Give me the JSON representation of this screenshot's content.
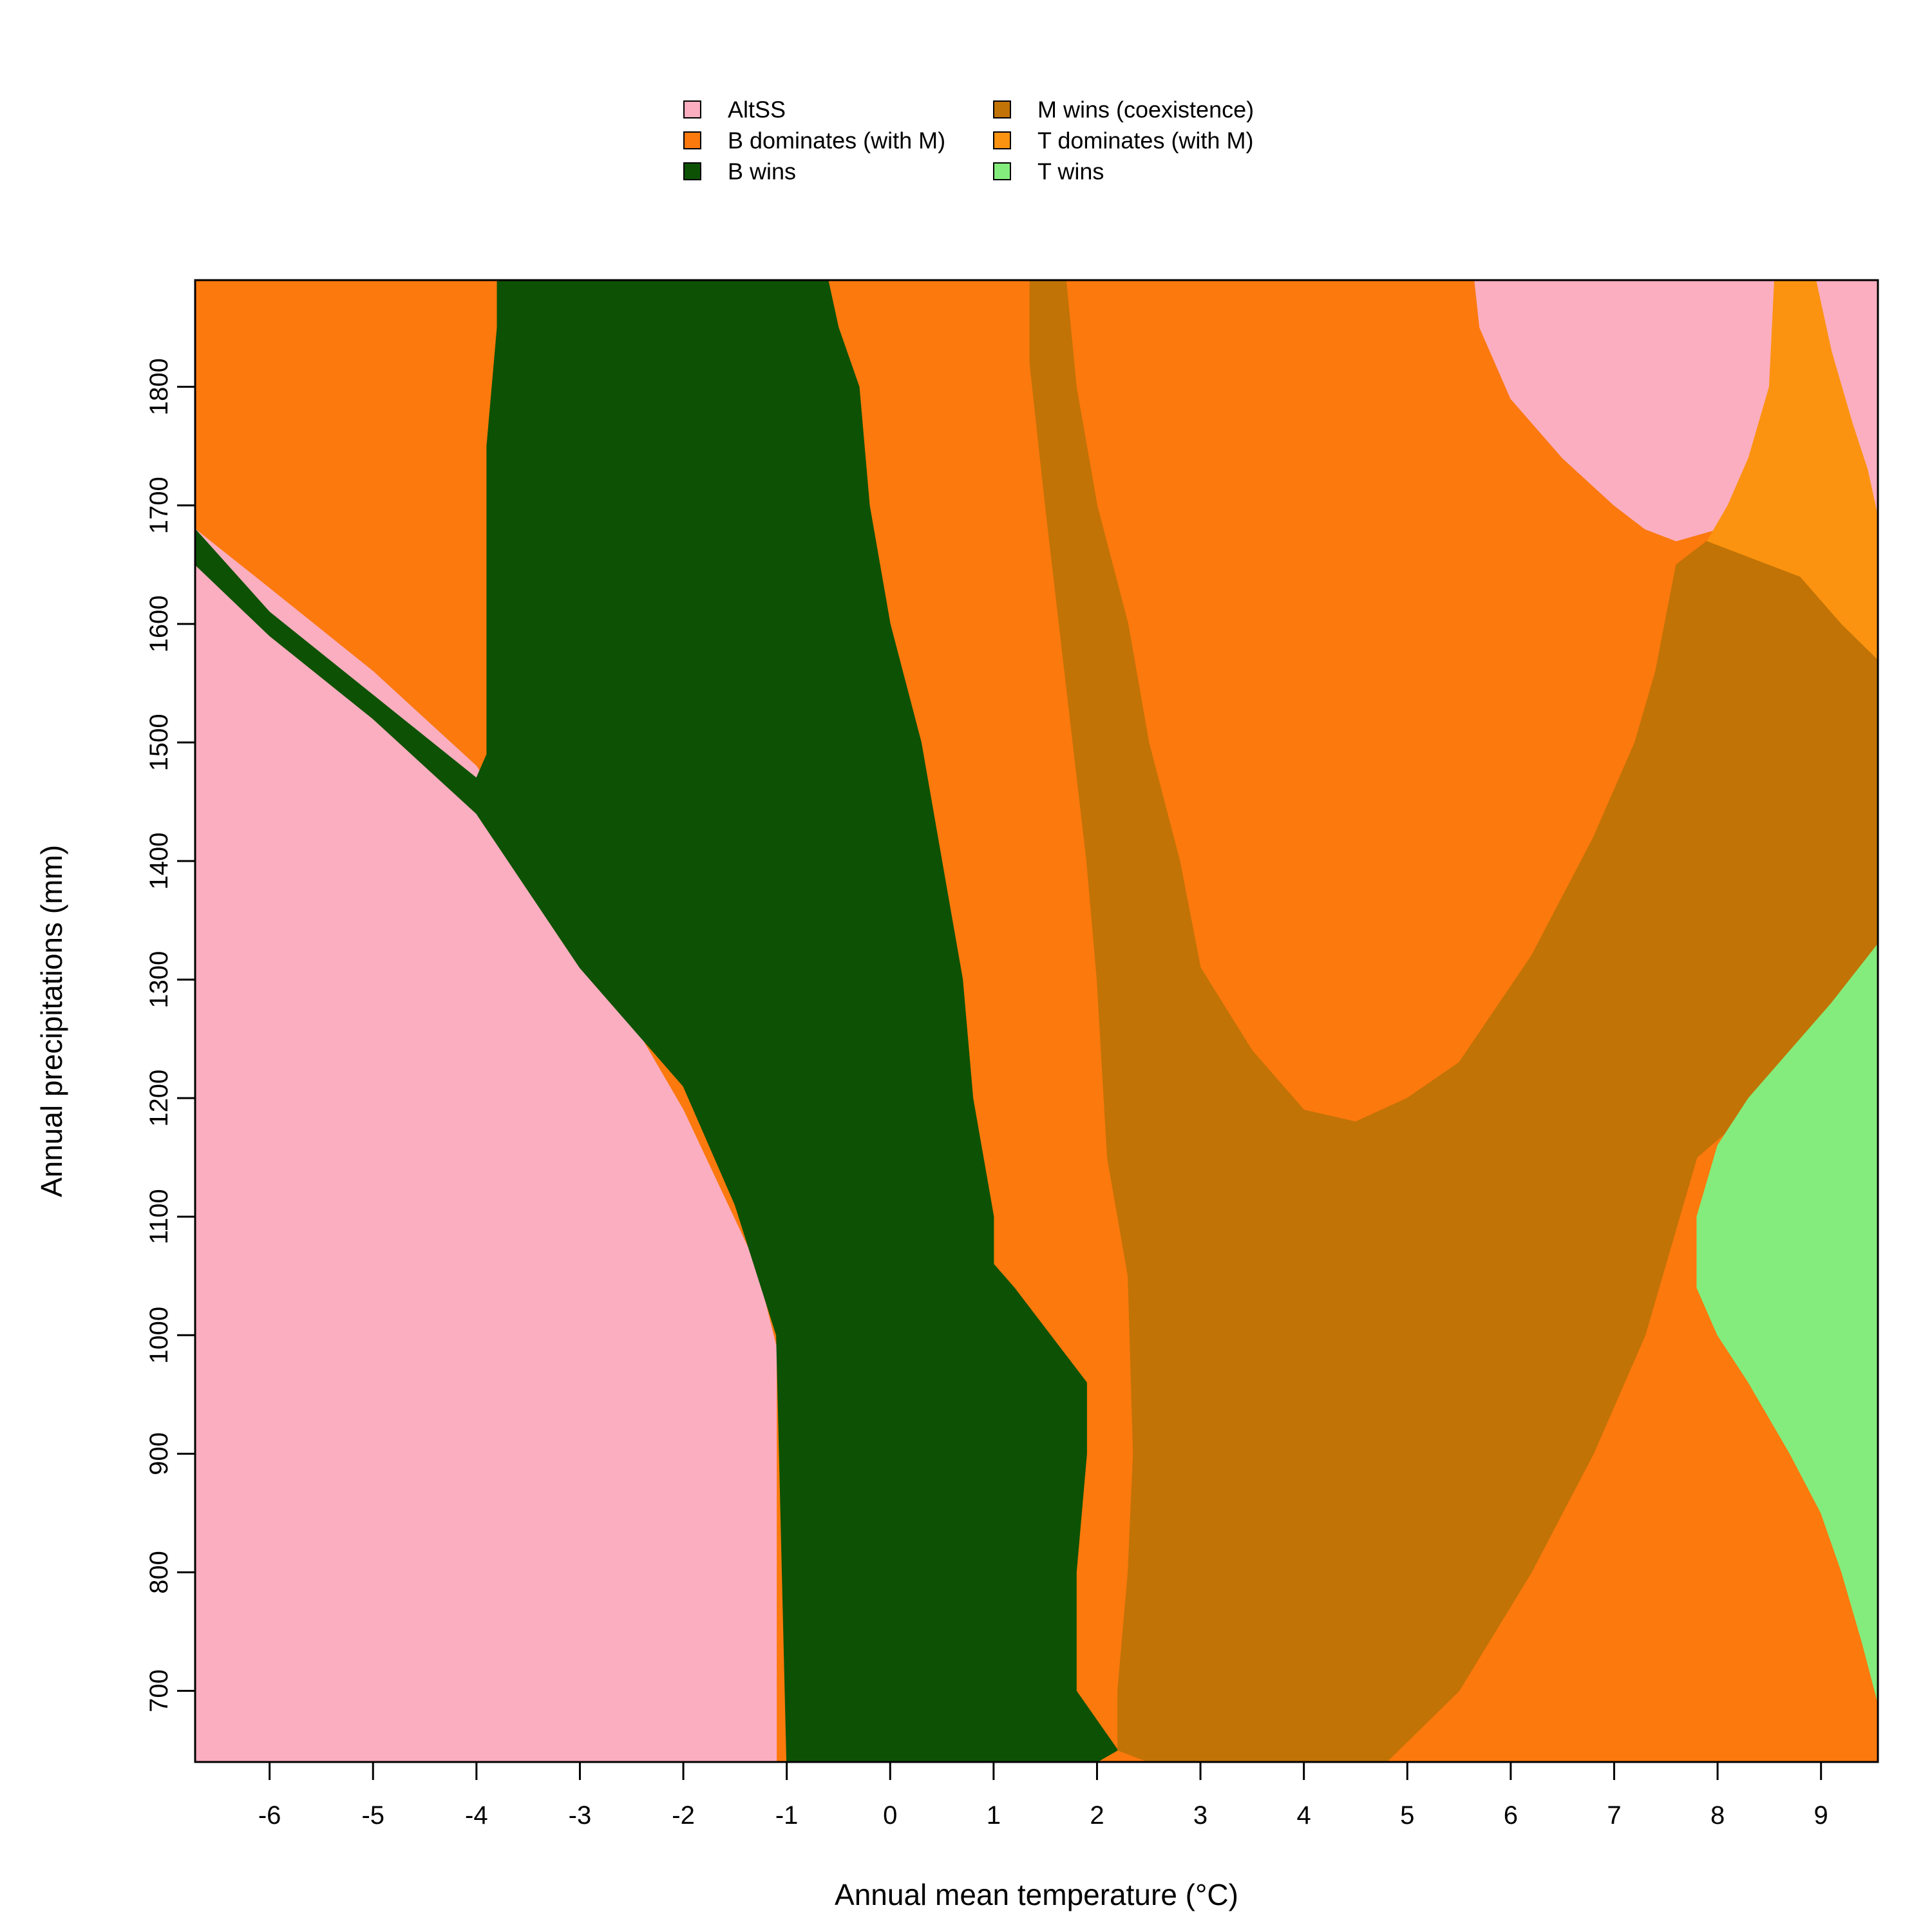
{
  "chart_data": {
    "type": "heatmap",
    "title": "",
    "xlabel": "Annual mean temperature (°C)",
    "ylabel": "Annual precipitations (mm)",
    "xlim": [
      -6.72,
      9.55
    ],
    "ylim": [
      640,
      1890
    ],
    "x_ticks": [
      -6,
      -5,
      -4,
      -3,
      -2,
      -1,
      0,
      1,
      2,
      3,
      4,
      5,
      6,
      7,
      8,
      9
    ],
    "y_ticks": [
      700,
      800,
      900,
      1000,
      1100,
      1200,
      1300,
      1400,
      1500,
      1600,
      1700,
      1800
    ],
    "legend": {
      "placement": "top-center",
      "entries": [
        {
          "key": "altss",
          "label": "AltSS",
          "color": "#FBAEC0"
        },
        {
          "key": "b_dom",
          "label": "B dominates (with M)",
          "color": "#FB790D"
        },
        {
          "key": "b_wins",
          "label": "B wins",
          "color": "#0D5204"
        },
        {
          "key": "m_wins",
          "label": "M wins (coexistence)",
          "color": "#C17306"
        },
        {
          "key": "t_dom",
          "label": "T dominates (with M)",
          "color": "#FB9310"
        },
        {
          "key": "t_wins",
          "label": "T wins",
          "color": "#84EC7C"
        }
      ]
    },
    "regions": [
      {
        "state": "b_dom",
        "points": [
          [
            -6.72,
            1890
          ],
          [
            -6.72,
            640
          ],
          [
            9.55,
            640
          ],
          [
            9.55,
            1890
          ]
        ]
      },
      {
        "state": "altss",
        "points": [
          [
            -6.72,
            640
          ],
          [
            -6.72,
            1680
          ],
          [
            -6.0,
            1630
          ],
          [
            -5.0,
            1560
          ],
          [
            -4.0,
            1480
          ],
          [
            -3.0,
            1340
          ],
          [
            -2.0,
            1190
          ],
          [
            -1.3,
            1060
          ],
          [
            -1.1,
            990
          ],
          [
            -1.1,
            640
          ]
        ]
      },
      {
        "state": "b_wins",
        "points": [
          [
            -6.72,
            1680
          ],
          [
            -6.72,
            1650
          ],
          [
            -6.0,
            1590
          ],
          [
            -5.0,
            1520
          ],
          [
            -4.0,
            1440
          ],
          [
            -3.0,
            1310
          ],
          [
            -2.0,
            1210
          ],
          [
            -1.5,
            1110
          ],
          [
            -1.1,
            1000
          ],
          [
            -1.0,
            640
          ],
          [
            2.0,
            640
          ],
          [
            2.2,
            650
          ],
          [
            1.8,
            700
          ],
          [
            1.8,
            800
          ],
          [
            1.9,
            900
          ],
          [
            1.9,
            960
          ],
          [
            1.2,
            1040
          ],
          [
            1.0,
            1060
          ],
          [
            1.0,
            1100
          ],
          [
            0.8,
            1200
          ],
          [
            0.7,
            1300
          ],
          [
            0.5,
            1400
          ],
          [
            0.3,
            1500
          ],
          [
            0.0,
            1600
          ],
          [
            -0.2,
            1700
          ],
          [
            -0.3,
            1800
          ],
          [
            -0.5,
            1850
          ],
          [
            -0.6,
            1890
          ],
          [
            -3.8,
            1890
          ],
          [
            -3.8,
            1850
          ],
          [
            -3.9,
            1750
          ],
          [
            -3.9,
            1490
          ],
          [
            -4.0,
            1470
          ],
          [
            -5.0,
            1540
          ],
          [
            -6.0,
            1610
          ]
        ]
      },
      {
        "state": "m_wins",
        "points": [
          [
            1.35,
            1890
          ],
          [
            1.35,
            1820
          ],
          [
            1.5,
            1700
          ],
          [
            1.7,
            1550
          ],
          [
            1.9,
            1400
          ],
          [
            2.0,
            1300
          ],
          [
            2.1,
            1150
          ],
          [
            2.3,
            1050
          ],
          [
            2.35,
            900
          ],
          [
            2.3,
            800
          ],
          [
            2.2,
            700
          ],
          [
            2.2,
            650
          ],
          [
            2.5,
            640
          ],
          [
            4.8,
            640
          ],
          [
            5.5,
            700
          ],
          [
            6.2,
            800
          ],
          [
            6.8,
            900
          ],
          [
            7.3,
            1000
          ],
          [
            7.8,
            1150
          ],
          [
            8.2,
            1180
          ],
          [
            8.7,
            1220
          ],
          [
            9.0,
            1260
          ],
          [
            9.55,
            1330
          ],
          [
            9.55,
            1570
          ],
          [
            9.2,
            1600
          ],
          [
            8.8,
            1640
          ],
          [
            8.2,
            1660
          ],
          [
            7.9,
            1670
          ],
          [
            7.6,
            1650
          ],
          [
            7.4,
            1560
          ],
          [
            7.2,
            1500
          ],
          [
            6.8,
            1420
          ],
          [
            6.2,
            1320
          ],
          [
            5.5,
            1230
          ],
          [
            5.0,
            1200
          ],
          [
            4.5,
            1180
          ],
          [
            4.0,
            1190
          ],
          [
            3.5,
            1240
          ],
          [
            3.0,
            1310
          ],
          [
            2.8,
            1400
          ],
          [
            2.5,
            1500
          ],
          [
            2.3,
            1600
          ],
          [
            2.0,
            1700
          ],
          [
            1.8,
            1800
          ],
          [
            1.7,
            1890
          ]
        ]
      },
      {
        "state": "altss",
        "points": [
          [
            5.65,
            1890
          ],
          [
            5.7,
            1850
          ],
          [
            6.0,
            1790
          ],
          [
            6.5,
            1740
          ],
          [
            7.0,
            1700
          ],
          [
            7.3,
            1680
          ],
          [
            7.6,
            1670
          ],
          [
            8.0,
            1680
          ],
          [
            8.3,
            1740
          ],
          [
            8.5,
            1800
          ],
          [
            8.6,
            1890
          ]
        ]
      },
      {
        "state": "altss",
        "points": [
          [
            8.95,
            1890
          ],
          [
            9.1,
            1830
          ],
          [
            9.3,
            1770
          ],
          [
            9.45,
            1730
          ],
          [
            9.55,
            1690
          ],
          [
            9.55,
            1890
          ]
        ]
      },
      {
        "state": "t_dom",
        "points": [
          [
            8.55,
            1890
          ],
          [
            8.5,
            1800
          ],
          [
            8.3,
            1740
          ],
          [
            8.1,
            1700
          ],
          [
            7.9,
            1670
          ],
          [
            8.2,
            1660
          ],
          [
            8.8,
            1640
          ],
          [
            9.2,
            1600
          ],
          [
            9.55,
            1570
          ],
          [
            9.55,
            1690
          ],
          [
            9.45,
            1730
          ],
          [
            9.3,
            1770
          ],
          [
            9.1,
            1830
          ],
          [
            8.95,
            1890
          ]
        ]
      },
      {
        "state": "t_wins",
        "points": [
          [
            9.55,
            690
          ],
          [
            9.4,
            740
          ],
          [
            9.2,
            800
          ],
          [
            9.0,
            850
          ],
          [
            8.7,
            900
          ],
          [
            8.3,
            960
          ],
          [
            8.0,
            1000
          ],
          [
            7.8,
            1040
          ],
          [
            7.8,
            1100
          ],
          [
            8.0,
            1160
          ],
          [
            8.3,
            1200
          ],
          [
            8.7,
            1240
          ],
          [
            9.1,
            1280
          ],
          [
            9.55,
            1330
          ]
        ]
      }
    ]
  }
}
